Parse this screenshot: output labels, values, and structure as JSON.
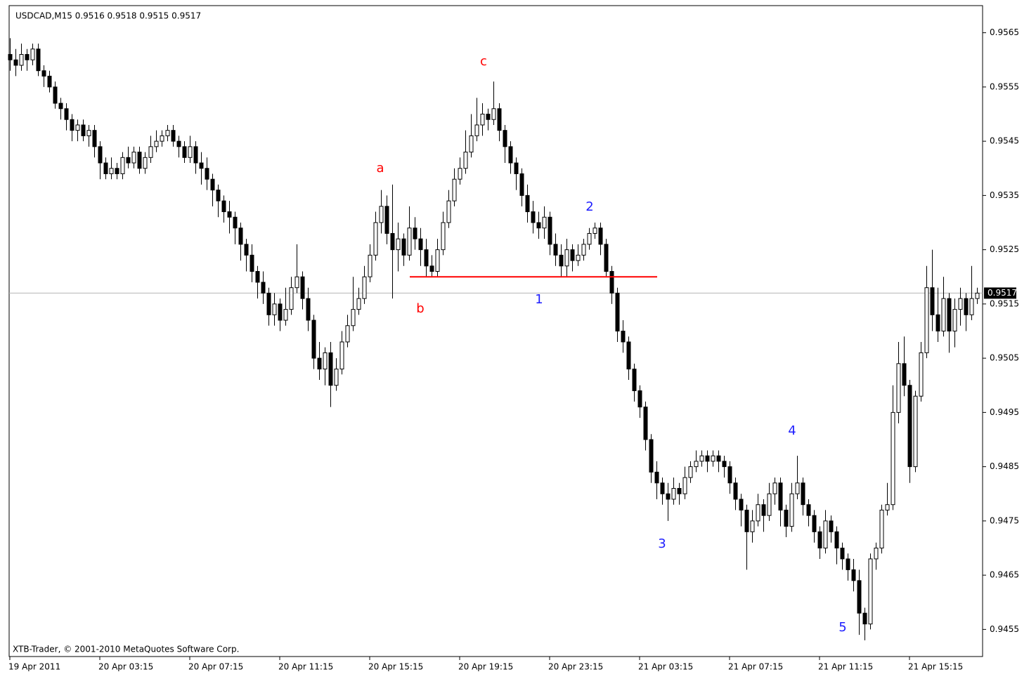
{
  "chart_data": {
    "type": "candlestick",
    "header": "USDCAD,M15  0.9516 0.9518 0.9515 0.9517",
    "footer": "XTB-Trader, © 2001-2010 MetaQuotes Software Corp.",
    "x_labels": [
      "19 Apr 2011",
      "20 Apr 03:15",
      "20 Apr 07:15",
      "20 Apr 11:15",
      "20 Apr 15:15",
      "20 Apr 19:15",
      "20 Apr 23:15",
      "21 Apr 03:15",
      "21 Apr 07:15",
      "21 Apr 11:15",
      "21 Apr 15:15"
    ],
    "ylim": [
      0.945,
      0.957
    ],
    "yticks": [
      0.9565,
      0.9555,
      0.9545,
      0.9535,
      0.9525,
      0.9515,
      0.9505,
      0.9495,
      0.9485,
      0.9475,
      0.9465,
      0.9455
    ],
    "grid": false,
    "up_color": "#ffffff",
    "down_color": "#000000",
    "current_price": 0.9517,
    "support_line": {
      "value": 0.952,
      "color": "#ff0000"
    },
    "annotations": [
      {
        "text": "a",
        "color": "#ff0000"
      },
      {
        "text": "b",
        "color": "#ff0000"
      },
      {
        "text": "c",
        "color": "#ff0000"
      },
      {
        "text": "1",
        "color": "#1e1eff"
      },
      {
        "text": "2",
        "color": "#1e1eff"
      },
      {
        "text": "3",
        "color": "#1e1eff"
      },
      {
        "text": "4",
        "color": "#1e1eff"
      },
      {
        "text": "5",
        "color": "#1e1eff"
      }
    ],
    "candles": [
      [
        0.9561,
        0.9564,
        0.9558,
        0.956
      ],
      [
        0.956,
        0.9562,
        0.9557,
        0.9559
      ],
      [
        0.9559,
        0.9563,
        0.9558,
        0.9561
      ],
      [
        0.9561,
        0.9562,
        0.9558,
        0.956
      ],
      [
        0.956,
        0.9563,
        0.9559,
        0.9562
      ],
      [
        0.9562,
        0.9563,
        0.9557,
        0.9558
      ],
      [
        0.9558,
        0.9559,
        0.9555,
        0.9557
      ],
      [
        0.9557,
        0.9558,
        0.9554,
        0.9555
      ],
      [
        0.9555,
        0.9556,
        0.9551,
        0.9552
      ],
      [
        0.9552,
        0.9553,
        0.9549,
        0.9551
      ],
      [
        0.9551,
        0.9552,
        0.9547,
        0.9549
      ],
      [
        0.9549,
        0.955,
        0.9545,
        0.9547
      ],
      [
        0.9547,
        0.9549,
        0.9545,
        0.9548
      ],
      [
        0.9548,
        0.9549,
        0.9545,
        0.9546
      ],
      [
        0.9546,
        0.9548,
        0.9544,
        0.9547
      ],
      [
        0.9547,
        0.9548,
        0.9542,
        0.9544
      ],
      [
        0.9544,
        0.9545,
        0.9538,
        0.9541
      ],
      [
        0.9541,
        0.9542,
        0.9538,
        0.9539
      ],
      [
        0.9539,
        0.9542,
        0.9538,
        0.954
      ],
      [
        0.954,
        0.9541,
        0.9538,
        0.9539
      ],
      [
        0.9539,
        0.9543,
        0.9538,
        0.9542
      ],
      [
        0.9542,
        0.9544,
        0.954,
        0.9541
      ],
      [
        0.9541,
        0.9544,
        0.954,
        0.9543
      ],
      [
        0.9543,
        0.9544,
        0.9539,
        0.954
      ],
      [
        0.954,
        0.9543,
        0.9539,
        0.9542
      ],
      [
        0.9542,
        0.9546,
        0.9541,
        0.9544
      ],
      [
        0.9544,
        0.9547,
        0.9543,
        0.9545
      ],
      [
        0.9545,
        0.9547,
        0.9544,
        0.9546
      ],
      [
        0.9546,
        0.9548,
        0.9545,
        0.9547
      ],
      [
        0.9547,
        0.9548,
        0.9544,
        0.9545
      ],
      [
        0.9545,
        0.9546,
        0.9542,
        0.9544
      ],
      [
        0.9544,
        0.9545,
        0.9541,
        0.9542
      ],
      [
        0.9542,
        0.9546,
        0.9541,
        0.9544
      ],
      [
        0.9544,
        0.9545,
        0.9539,
        0.9541
      ],
      [
        0.9541,
        0.9543,
        0.9537,
        0.954
      ],
      [
        0.954,
        0.9542,
        0.9536,
        0.9538
      ],
      [
        0.9538,
        0.9539,
        0.9533,
        0.9536
      ],
      [
        0.9536,
        0.9537,
        0.9531,
        0.9534
      ],
      [
        0.9534,
        0.9535,
        0.953,
        0.9532
      ],
      [
        0.9532,
        0.9534,
        0.9528,
        0.9531
      ],
      [
        0.9531,
        0.9532,
        0.9526,
        0.9529
      ],
      [
        0.9529,
        0.953,
        0.9523,
        0.9526
      ],
      [
        0.9526,
        0.9527,
        0.9521,
        0.9524
      ],
      [
        0.9524,
        0.9526,
        0.9519,
        0.9521
      ],
      [
        0.9521,
        0.9522,
        0.9516,
        0.9519
      ],
      [
        0.9519,
        0.9521,
        0.9515,
        0.9517
      ],
      [
        0.9517,
        0.9518,
        0.9511,
        0.9513
      ],
      [
        0.9513,
        0.9517,
        0.9511,
        0.9515
      ],
      [
        0.9515,
        0.9516,
        0.951,
        0.9512
      ],
      [
        0.9512,
        0.9518,
        0.9511,
        0.9514
      ],
      [
        0.9514,
        0.952,
        0.9513,
        0.9518
      ],
      [
        0.9518,
        0.9526,
        0.9517,
        0.952
      ],
      [
        0.952,
        0.9521,
        0.9514,
        0.9516
      ],
      [
        0.9516,
        0.9518,
        0.951,
        0.9512
      ],
      [
        0.9512,
        0.9513,
        0.9503,
        0.9505
      ],
      [
        0.9505,
        0.9508,
        0.9501,
        0.9503
      ],
      [
        0.9503,
        0.9507,
        0.95,
        0.9506
      ],
      [
        0.9506,
        0.9508,
        0.9496,
        0.95
      ],
      [
        0.95,
        0.9505,
        0.9499,
        0.9503
      ],
      [
        0.9503,
        0.951,
        0.9502,
        0.9508
      ],
      [
        0.9508,
        0.9513,
        0.9507,
        0.9511
      ],
      [
        0.9511,
        0.952,
        0.951,
        0.9514
      ],
      [
        0.9514,
        0.9518,
        0.9513,
        0.9516
      ],
      [
        0.9516,
        0.9522,
        0.9515,
        0.952
      ],
      [
        0.952,
        0.9526,
        0.9519,
        0.9524
      ],
      [
        0.9524,
        0.9532,
        0.9523,
        0.953
      ],
      [
        0.953,
        0.9536,
        0.9528,
        0.9533
      ],
      [
        0.9533,
        0.9535,
        0.9526,
        0.9528
      ],
      [
        0.9528,
        0.9537,
        0.9516,
        0.9525
      ],
      [
        0.9525,
        0.953,
        0.9521,
        0.9527
      ],
      [
        0.9527,
        0.9528,
        0.9522,
        0.9524
      ],
      [
        0.9524,
        0.9533,
        0.9523,
        0.9529
      ],
      [
        0.9529,
        0.9531,
        0.9525,
        0.9527
      ],
      [
        0.9527,
        0.9529,
        0.9522,
        0.9525
      ],
      [
        0.9525,
        0.9527,
        0.952,
        0.9522
      ],
      [
        0.9522,
        0.9524,
        0.952,
        0.9521
      ],
      [
        0.9521,
        0.9527,
        0.952,
        0.9525
      ],
      [
        0.9525,
        0.9532,
        0.9524,
        0.953
      ],
      [
        0.953,
        0.9536,
        0.9529,
        0.9534
      ],
      [
        0.9534,
        0.954,
        0.9533,
        0.9538
      ],
      [
        0.9538,
        0.9542,
        0.9537,
        0.954
      ],
      [
        0.954,
        0.9547,
        0.9539,
        0.9543
      ],
      [
        0.9543,
        0.955,
        0.9542,
        0.9546
      ],
      [
        0.9546,
        0.9553,
        0.9545,
        0.9548
      ],
      [
        0.9548,
        0.9552,
        0.9546,
        0.955
      ],
      [
        0.955,
        0.9551,
        0.9547,
        0.9549
      ],
      [
        0.9549,
        0.9556,
        0.9548,
        0.9551
      ],
      [
        0.9551,
        0.9552,
        0.9545,
        0.9547
      ],
      [
        0.9547,
        0.9548,
        0.9541,
        0.9544
      ],
      [
        0.9544,
        0.9545,
        0.9539,
        0.9541
      ],
      [
        0.9541,
        0.9542,
        0.9536,
        0.9539
      ],
      [
        0.9539,
        0.954,
        0.9533,
        0.9535
      ],
      [
        0.9535,
        0.9537,
        0.953,
        0.9532
      ],
      [
        0.9532,
        0.9534,
        0.9528,
        0.953
      ],
      [
        0.953,
        0.9532,
        0.9527,
        0.9529
      ],
      [
        0.9529,
        0.9533,
        0.9527,
        0.9531
      ],
      [
        0.9531,
        0.9532,
        0.9524,
        0.9526
      ],
      [
        0.9526,
        0.9528,
        0.9522,
        0.9524
      ],
      [
        0.9524,
        0.9526,
        0.952,
        0.9522
      ],
      [
        0.9522,
        0.9527,
        0.952,
        0.9525
      ],
      [
        0.9525,
        0.9526,
        0.9521,
        0.9523
      ],
      [
        0.9523,
        0.9526,
        0.9522,
        0.9524
      ],
      [
        0.9524,
        0.9527,
        0.9523,
        0.9526
      ],
      [
        0.9526,
        0.9529,
        0.9525,
        0.9528
      ],
      [
        0.9528,
        0.953,
        0.9527,
        0.9529
      ],
      [
        0.9529,
        0.953,
        0.9524,
        0.9526
      ],
      [
        0.9526,
        0.9527,
        0.952,
        0.9521
      ],
      [
        0.9521,
        0.9522,
        0.9515,
        0.9517
      ],
      [
        0.9517,
        0.9518,
        0.9508,
        0.951
      ],
      [
        0.951,
        0.9512,
        0.9506,
        0.9508
      ],
      [
        0.9508,
        0.9509,
        0.9501,
        0.9503
      ],
      [
        0.9503,
        0.9504,
        0.9497,
        0.9499
      ],
      [
        0.9499,
        0.95,
        0.9494,
        0.9496
      ],
      [
        0.9496,
        0.9497,
        0.9488,
        0.949
      ],
      [
        0.949,
        0.9491,
        0.9482,
        0.9484
      ],
      [
        0.9484,
        0.9486,
        0.9479,
        0.9482
      ],
      [
        0.9482,
        0.9483,
        0.9478,
        0.948
      ],
      [
        0.948,
        0.9482,
        0.9475,
        0.9479
      ],
      [
        0.9479,
        0.9483,
        0.9478,
        0.9481
      ],
      [
        0.9481,
        0.9482,
        0.9478,
        0.948
      ],
      [
        0.948,
        0.9485,
        0.9479,
        0.9483
      ],
      [
        0.9483,
        0.9486,
        0.9482,
        0.9485
      ],
      [
        0.9485,
        0.9488,
        0.9484,
        0.9486
      ],
      [
        0.9486,
        0.9488,
        0.9485,
        0.9487
      ],
      [
        0.9487,
        0.9488,
        0.9484,
        0.9486
      ],
      [
        0.9486,
        0.9488,
        0.9485,
        0.9487
      ],
      [
        0.9487,
        0.9488,
        0.9484,
        0.9486
      ],
      [
        0.9486,
        0.9487,
        0.9483,
        0.9485
      ],
      [
        0.9485,
        0.9486,
        0.948,
        0.9482
      ],
      [
        0.9482,
        0.9483,
        0.9477,
        0.9479
      ],
      [
        0.9479,
        0.948,
        0.9474,
        0.9477
      ],
      [
        0.9477,
        0.9478,
        0.9466,
        0.9473
      ],
      [
        0.9473,
        0.9477,
        0.9471,
        0.9475
      ],
      [
        0.9475,
        0.948,
        0.9474,
        0.9478
      ],
      [
        0.9478,
        0.9479,
        0.9473,
        0.9476
      ],
      [
        0.9476,
        0.9482,
        0.9475,
        0.948
      ],
      [
        0.948,
        0.9483,
        0.9478,
        0.9482
      ],
      [
        0.9482,
        0.9483,
        0.9474,
        0.9477
      ],
      [
        0.9477,
        0.9478,
        0.9472,
        0.9474
      ],
      [
        0.9474,
        0.9482,
        0.9473,
        0.948
      ],
      [
        0.948,
        0.9487,
        0.9479,
        0.9482
      ],
      [
        0.9482,
        0.9483,
        0.9476,
        0.9478
      ],
      [
        0.9478,
        0.9479,
        0.9474,
        0.9476
      ],
      [
        0.9476,
        0.9477,
        0.9471,
        0.9473
      ],
      [
        0.9473,
        0.9474,
        0.9468,
        0.947
      ],
      [
        0.947,
        0.9477,
        0.9469,
        0.9475
      ],
      [
        0.9475,
        0.9476,
        0.9471,
        0.9473
      ],
      [
        0.9473,
        0.9474,
        0.9467,
        0.947
      ],
      [
        0.947,
        0.9471,
        0.9466,
        0.9468
      ],
      [
        0.9468,
        0.9469,
        0.9464,
        0.9466
      ],
      [
        0.9466,
        0.9468,
        0.9462,
        0.9464
      ],
      [
        0.9464,
        0.9466,
        0.9454,
        0.9458
      ],
      [
        0.9458,
        0.9459,
        0.9453,
        0.9456
      ],
      [
        0.9456,
        0.9469,
        0.9455,
        0.9468
      ],
      [
        0.9468,
        0.9471,
        0.9466,
        0.947
      ],
      [
        0.947,
        0.9478,
        0.9469,
        0.9477
      ],
      [
        0.9477,
        0.9482,
        0.9476,
        0.9478
      ],
      [
        0.9478,
        0.95,
        0.9477,
        0.9495
      ],
      [
        0.9495,
        0.9508,
        0.9493,
        0.9504
      ],
      [
        0.9504,
        0.9509,
        0.9498,
        0.95
      ],
      [
        0.95,
        0.9501,
        0.9482,
        0.9485
      ],
      [
        0.9485,
        0.9499,
        0.9484,
        0.9498
      ],
      [
        0.9498,
        0.9508,
        0.9497,
        0.9506
      ],
      [
        0.9506,
        0.9522,
        0.9505,
        0.9518
      ],
      [
        0.9518,
        0.9525,
        0.951,
        0.9513
      ],
      [
        0.9513,
        0.9518,
        0.9508,
        0.951
      ],
      [
        0.951,
        0.952,
        0.9509,
        0.9516
      ],
      [
        0.9516,
        0.9517,
        0.9506,
        0.951
      ],
      [
        0.951,
        0.9516,
        0.9507,
        0.9514
      ],
      [
        0.9514,
        0.9518,
        0.9511,
        0.9516
      ],
      [
        0.9516,
        0.9517,
        0.951,
        0.9513
      ],
      [
        0.9513,
        0.9522,
        0.9512,
        0.9516
      ],
      [
        0.9516,
        0.9518,
        0.9515,
        0.9517
      ]
    ]
  }
}
